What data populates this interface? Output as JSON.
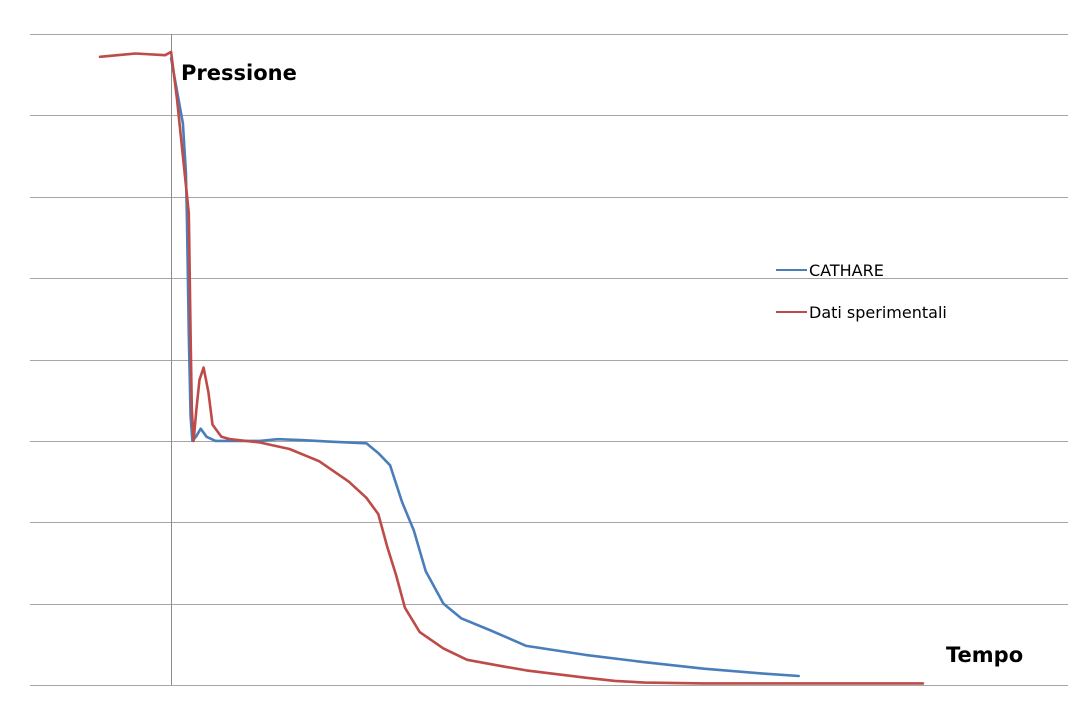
{
  "chart_data": {
    "type": "line",
    "title": "",
    "ylabel": "Pressione",
    "xlabel": "Tempo",
    "x_tick_labels": false,
    "y_tick_labels": false,
    "grid": true,
    "horizontal_gridlines": 8,
    "legend_position": "right",
    "xlim": [
      -1.2,
      14.0
    ],
    "ylim": [
      0,
      8
    ],
    "series": [
      {
        "name": "CATHARE",
        "color": "#4a7ebb",
        "points": [
          [
            0.0,
            7.7
          ],
          [
            0.2,
            6.9
          ],
          [
            0.25,
            6.3
          ],
          [
            0.27,
            5.7
          ],
          [
            0.3,
            4.3
          ],
          [
            0.33,
            3.3
          ],
          [
            0.36,
            3.0
          ],
          [
            0.42,
            3.05
          ],
          [
            0.5,
            3.15
          ],
          [
            0.6,
            3.05
          ],
          [
            0.75,
            3.0
          ],
          [
            1.0,
            3.0
          ],
          [
            1.5,
            3.0
          ],
          [
            1.8,
            3.02
          ],
          [
            2.2,
            3.01
          ],
          [
            2.7,
            2.99
          ],
          [
            3.3,
            2.97
          ],
          [
            3.5,
            2.85
          ],
          [
            3.7,
            2.7
          ],
          [
            3.9,
            2.25
          ],
          [
            4.1,
            1.9
          ],
          [
            4.3,
            1.4
          ],
          [
            4.6,
            1.0
          ],
          [
            4.9,
            0.82
          ],
          [
            5.4,
            0.67
          ],
          [
            6.0,
            0.48
          ],
          [
            7.0,
            0.37
          ],
          [
            8.0,
            0.28
          ],
          [
            9.0,
            0.2
          ],
          [
            10.0,
            0.14
          ],
          [
            10.6,
            0.11
          ]
        ]
      },
      {
        "name": "Dati sperimentali",
        "color": "#be4b48",
        "points": [
          [
            -1.2,
            7.72
          ],
          [
            -0.6,
            7.76
          ],
          [
            -0.1,
            7.74
          ],
          [
            0.0,
            7.78
          ],
          [
            0.1,
            7.2
          ],
          [
            0.2,
            6.5
          ],
          [
            0.3,
            5.8
          ],
          [
            0.33,
            4.3
          ],
          [
            0.35,
            3.4
          ],
          [
            0.38,
            3.0
          ],
          [
            0.43,
            3.4
          ],
          [
            0.48,
            3.75
          ],
          [
            0.55,
            3.9
          ],
          [
            0.63,
            3.6
          ],
          [
            0.7,
            3.2
          ],
          [
            0.85,
            3.05
          ],
          [
            1.0,
            3.02
          ],
          [
            1.5,
            2.98
          ],
          [
            2.0,
            2.9
          ],
          [
            2.5,
            2.75
          ],
          [
            3.0,
            2.5
          ],
          [
            3.3,
            2.3
          ],
          [
            3.5,
            2.1
          ],
          [
            3.65,
            1.7
          ],
          [
            3.8,
            1.35
          ],
          [
            3.95,
            0.95
          ],
          [
            4.2,
            0.65
          ],
          [
            4.6,
            0.45
          ],
          [
            5.0,
            0.31
          ],
          [
            5.6,
            0.23
          ],
          [
            6.0,
            0.18
          ],
          [
            7.0,
            0.09
          ],
          [
            7.5,
            0.05
          ],
          [
            8.0,
            0.03
          ],
          [
            9.0,
            0.02
          ],
          [
            10.0,
            0.02
          ],
          [
            11.0,
            0.02
          ],
          [
            12.0,
            0.02
          ],
          [
            12.7,
            0.02
          ]
        ]
      }
    ]
  }
}
